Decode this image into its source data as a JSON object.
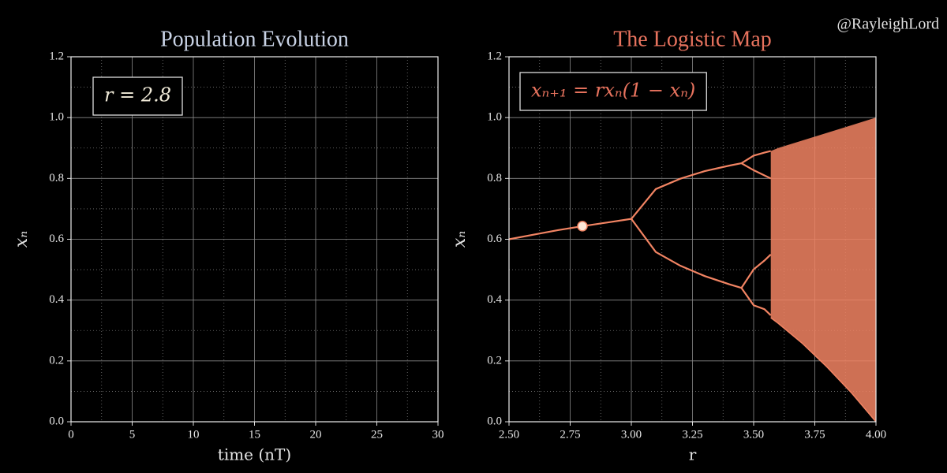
{
  "watermark": "@RayleighLord",
  "chart_data": [
    {
      "type": "line",
      "title": "Population Evolution",
      "xlabel": "time (nT)",
      "ylabel": "xₙ",
      "annotation": "r = 2.8",
      "title_color": "#c9d3e6",
      "xlim": [
        0,
        30
      ],
      "xticks": [
        0,
        5,
        10,
        15,
        20,
        25,
        30
      ],
      "xminorticks": [
        2.5,
        7.5,
        12.5,
        17.5,
        22.5,
        27.5
      ],
      "ylim": [
        0,
        1.2
      ],
      "yticks": [
        {
          "value": 0,
          "label": "0.0"
        },
        {
          "value": 0.2,
          "label": "0.2"
        },
        {
          "value": 0.4,
          "label": "0.4"
        },
        {
          "value": 0.6,
          "label": "0.6"
        },
        {
          "value": 0.8,
          "label": "0.8"
        },
        {
          "value": 1.0,
          "label": "1.0"
        },
        {
          "value": 1.2,
          "label": "1.2"
        }
      ],
      "yminorticks": [
        0.1,
        0.3,
        0.5,
        0.7,
        0.9,
        1.1
      ],
      "grid": true
    },
    {
      "type": "bifurcation",
      "title": "The Logistic Map",
      "xlabel": "r",
      "ylabel": "xₙ",
      "annotation": "xₙ₊₁ = rxₙ(1 − xₙ)",
      "title_color": "#e8735e",
      "color": "#f28463",
      "xlim": [
        2.5,
        4.0
      ],
      "xticks": [
        {
          "value": 2.5,
          "label": "2.50"
        },
        {
          "value": 2.75,
          "label": "2.75"
        },
        {
          "value": 3.0,
          "label": "3.00"
        },
        {
          "value": 3.25,
          "label": "3.25"
        },
        {
          "value": 3.5,
          "label": "3.50"
        },
        {
          "value": 3.75,
          "label": "3.75"
        },
        {
          "value": 4.0,
          "label": "4.00"
        }
      ],
      "xminorticks": [
        2.625,
        2.875,
        3.125,
        3.375,
        3.625,
        3.875
      ],
      "ylim": [
        0,
        1.2
      ],
      "yticks": [
        {
          "value": 0,
          "label": "0.0"
        },
        {
          "value": 0.2,
          "label": "0.2"
        },
        {
          "value": 0.4,
          "label": "0.4"
        },
        {
          "value": 0.6,
          "label": "0.6"
        },
        {
          "value": 0.8,
          "label": "0.8"
        },
        {
          "value": 1.0,
          "label": "1.0"
        },
        {
          "value": 1.2,
          "label": "1.2"
        }
      ],
      "yminorticks": [
        0.1,
        0.3,
        0.5,
        0.7,
        0.9,
        1.1
      ],
      "grid": true,
      "series": [
        {
          "x": [
            2.5,
            2.6,
            2.7,
            2.8,
            2.9,
            3.0
          ],
          "values": [
            0.6,
            0.615,
            0.63,
            0.643,
            0.655,
            0.667
          ]
        },
        {
          "x": [
            3.0,
            3.1,
            3.2,
            3.3,
            3.4,
            3.45
          ],
          "values": [
            0.667,
            0.765,
            0.799,
            0.824,
            0.842,
            0.85
          ]
        },
        {
          "x": [
            3.0,
            3.1,
            3.2,
            3.3,
            3.4,
            3.45
          ],
          "values": [
            0.667,
            0.558,
            0.513,
            0.479,
            0.452,
            0.44
          ]
        },
        {
          "x": [
            3.45,
            3.5,
            3.544,
            3.57
          ],
          "values": [
            0.85,
            0.875,
            0.885,
            0.89
          ]
        },
        {
          "x": [
            3.45,
            3.5,
            3.544,
            3.57
          ],
          "values": [
            0.85,
            0.827,
            0.81,
            0.8
          ]
        },
        {
          "x": [
            3.45,
            3.5,
            3.544,
            3.57
          ],
          "values": [
            0.44,
            0.501,
            0.53,
            0.55
          ]
        },
        {
          "x": [
            3.45,
            3.5,
            3.544,
            3.57
          ],
          "values": [
            0.44,
            0.383,
            0.37,
            0.35
          ]
        }
      ],
      "band": {
        "x": [
          3.57,
          3.6,
          3.7,
          3.8,
          3.9,
          4.0
        ],
        "upper": [
          0.89,
          0.9,
          0.925,
          0.95,
          0.975,
          1.0
        ],
        "lower": [
          0.342,
          0.324,
          0.257,
          0.18,
          0.095,
          0.0
        ]
      },
      "marker": {
        "x": 2.8,
        "y": 0.643,
        "color": "#fde8d8"
      }
    }
  ]
}
